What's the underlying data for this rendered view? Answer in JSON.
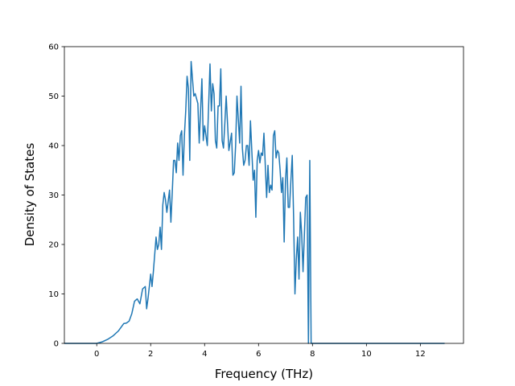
{
  "chart_data": {
    "type": "line",
    "title": "",
    "xlabel": "Frequency (THz)",
    "ylabel": "Density of States",
    "xlim": [
      -1.2,
      13.6
    ],
    "ylim": [
      0,
      60
    ],
    "xticks": [
      0,
      2,
      4,
      6,
      8,
      10,
      12
    ],
    "yticks": [
      0,
      10,
      20,
      30,
      40,
      50,
      60
    ],
    "grid": false,
    "line_color": "#1f77b4",
    "series": [
      {
        "x": [
          -1.2,
          -1.0,
          -0.5,
          0.0,
          0.2,
          0.4,
          0.6,
          0.8,
          1.0,
          1.1,
          1.2,
          1.3,
          1.4,
          1.5,
          1.6,
          1.7,
          1.8,
          1.85,
          1.9,
          2.0,
          2.05,
          2.1,
          2.2,
          2.25,
          2.3,
          2.35,
          2.4,
          2.45,
          2.5,
          2.55,
          2.6,
          2.7,
          2.75,
          2.8,
          2.85,
          2.9,
          2.95,
          3.0,
          3.05,
          3.1,
          3.15,
          3.2,
          3.25,
          3.3,
          3.35,
          3.4,
          3.45,
          3.5,
          3.55,
          3.6,
          3.65,
          3.7,
          3.75,
          3.8,
          3.9,
          3.95,
          4.0,
          4.1,
          4.2,
          4.25,
          4.3,
          4.35,
          4.4,
          4.45,
          4.5,
          4.55,
          4.6,
          4.65,
          4.7,
          4.75,
          4.8,
          4.9,
          5.0,
          5.05,
          5.1,
          5.15,
          5.2,
          5.3,
          5.35,
          5.4,
          5.45,
          5.5,
          5.55,
          5.6,
          5.65,
          5.7,
          5.8,
          5.85,
          5.9,
          5.95,
          6.0,
          6.05,
          6.1,
          6.15,
          6.2,
          6.3,
          6.35,
          6.4,
          6.45,
          6.5,
          6.55,
          6.6,
          6.65,
          6.7,
          6.75,
          6.8,
          6.85,
          6.9,
          6.95,
          7.0,
          7.05,
          7.1,
          7.15,
          7.2,
          7.25,
          7.3,
          7.35,
          7.4,
          7.45,
          7.5,
          7.55,
          7.6,
          7.65,
          7.7,
          7.75,
          7.8,
          7.85,
          7.9,
          7.95,
          8.0,
          8.05,
          8.1,
          8.15,
          8.2,
          8.25,
          8.3,
          8.35,
          8.4,
          8.45,
          8.5,
          8.55,
          8.6,
          8.65,
          8.7,
          8.75,
          8.8,
          8.85,
          8.9,
          8.95,
          9.0,
          9.05,
          9.1,
          9.15,
          9.2,
          9.25,
          9.3,
          9.35,
          9.4,
          9.45,
          9.5,
          9.55,
          9.6,
          9.65,
          9.7,
          9.75,
          9.8,
          9.85,
          9.9,
          10.0,
          11.0,
          12.0,
          12.9
        ],
        "y": [
          0,
          0,
          0,
          0,
          0.3,
          0.8,
          1.5,
          2.5,
          4.0,
          4.1,
          4.5,
          6.0,
          8.5,
          9.0,
          8.0,
          11.0,
          11.5,
          7.0,
          9.0,
          14.0,
          11.5,
          14.5,
          21.5,
          19.0,
          20.0,
          23.5,
          19.0,
          28.0,
          30.5,
          29.0,
          26.5,
          31.0,
          24.5,
          30.5,
          37.0,
          37.0,
          34.5,
          40.5,
          37.0,
          42.0,
          43.0,
          34.0,
          42.0,
          47.0,
          54.0,
          51.5,
          37.0,
          57.0,
          53.5,
          50.0,
          50.5,
          49.5,
          48.5,
          40.5,
          53.5,
          41.0,
          44.0,
          40.0,
          56.5,
          47.0,
          52.5,
          50.5,
          41.0,
          39.5,
          48.0,
          48.0,
          55.5,
          41.0,
          39.5,
          44.5,
          50.0,
          39.0,
          42.5,
          34.0,
          34.5,
          40.0,
          50.0,
          40.5,
          52.0,
          39.5,
          36.0,
          37.0,
          40.0,
          40.0,
          36.0,
          45.0,
          33.0,
          35.0,
          25.5,
          37.0,
          39.0,
          36.5,
          38.5,
          38.0,
          42.5,
          29.5,
          36.0,
          30.5,
          32.0,
          31.0,
          42.0,
          43.0,
          37.5,
          39.0,
          38.5,
          35.0,
          30.5,
          33.5,
          20.5,
          33.0,
          37.5,
          27.5,
          27.5,
          33.0,
          38.0,
          25.5,
          10.0,
          17.0,
          21.5,
          13.0,
          26.5,
          22.0,
          14.5,
          22.0,
          29.5,
          30.0,
          0,
          37.0,
          0,
          0,
          0,
          0,
          0,
          0,
          0,
          0,
          0,
          0,
          0,
          0,
          0,
          0,
          0,
          0,
          0,
          0,
          0,
          0,
          0,
          0,
          0,
          0,
          0,
          0,
          0,
          0,
          0,
          0,
          0,
          0,
          0,
          0,
          0,
          0,
          0,
          0,
          0,
          0,
          0,
          0,
          0,
          0
        ]
      }
    ]
  }
}
